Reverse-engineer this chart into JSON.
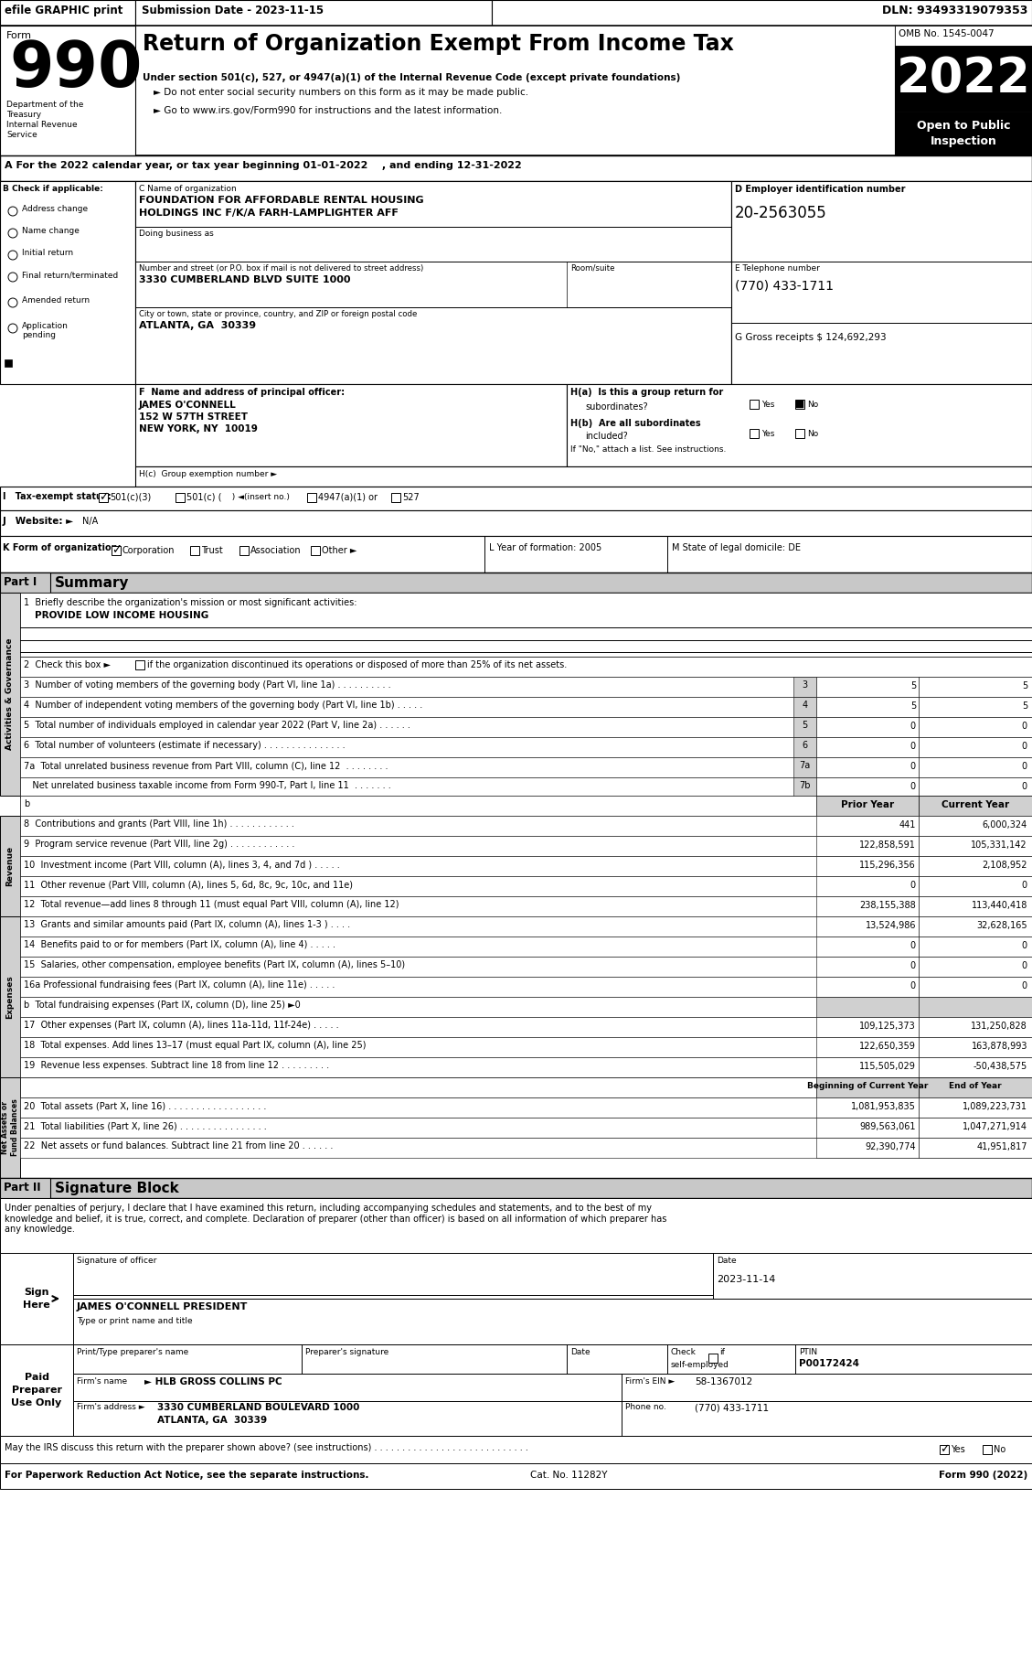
{
  "title_line1": "Return of Organization Exempt From Income Tax",
  "subtitle1": "Under section 501(c), 527, or 4947(a)(1) of the Internal Revenue Code (except private foundations)",
  "subtitle2": "► Do not enter social security numbers on this form as it may be made public.",
  "subtitle3": "► Go to www.irs.gov/Form990 for instructions and the latest information.",
  "efile_text": "efile GRAPHIC print",
  "submission_date": "Submission Date - 2023-11-15",
  "dln": "DLN: 93493319079353",
  "omb": "OMB No. 1545-0047",
  "year": "2022",
  "form_label": "Form",
  "dept_treasury": "Department of the\nTreasury\nInternal Revenue\nService",
  "tax_year_line": "A For the 2022 calendar year, or tax year beginning 01-01-2022    , and ending 12-31-2022",
  "org_name1": "FOUNDATION FOR AFFORDABLE RENTAL HOUSING",
  "org_name2": "HOLDINGS INC F/K/A FARH-LAMPLIGHTER AFF",
  "doing_business_as": "Doing business as",
  "address_label": "Number and street (or P.O. box if mail is not delivered to street address)",
  "address_value": "3330 CUMBERLAND BLVD SUITE 1000",
  "room_suite": "Room/suite",
  "city_label": "City or town, state or province, country, and ZIP or foreign postal code",
  "city_value": "ATLANTA, GA  30339",
  "ein": "20-2563055",
  "phone": "(770) 433-1711",
  "gross_receipts": "124,692,293",
  "officer_name": "JAMES O'CONNELL",
  "officer_addr1": "152 W 57TH STREET",
  "officer_addr2": "NEW YORK, NY  10019",
  "l_year": "2005",
  "m_state": "DE",
  "line1_label": "1  Briefly describe the organization's mission or most significant activities:",
  "line1_value": "PROVIDE LOW INCOME HOUSING",
  "sig_declaration": "Under penalties of perjury, I declare that I have examined this return, including accompanying schedules and statements, and to the best of my\nknowledge and belief, it is true, correct, and complete. Declaration of preparer (other than officer) is based on all information of which preparer has\nany knowledge.",
  "sig_date": "2023-11-14",
  "sig_name": "JAMES O'CONNELL PRESIDENT",
  "ptin_value": "P00172424",
  "firm_name": "► HLB GROSS COLLINS PC",
  "firm_ein": "58-1367012",
  "firm_addr": "3330 CUMBERLAND BOULEVARD 1000",
  "firm_city": "ATLANTA, GA  30339",
  "phone_value": "(770) 433-1711",
  "for_paperwork": "For Paperwork Reduction Act Notice, see the separate instructions.",
  "cat_no": "Cat. No. 11282Y",
  "form_footer": "Form 990 (2022)",
  "bg_color": "#ffffff",
  "gray_header": "#c8c8c8",
  "gray_side": "#d0d0d0",
  "gray_col": "#d0d0d0"
}
